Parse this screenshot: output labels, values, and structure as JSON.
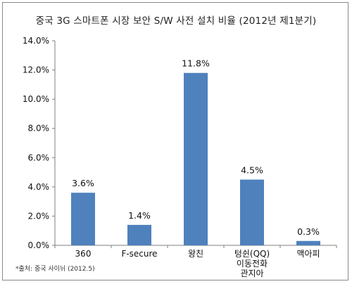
{
  "chart_data": {
    "type": "bar",
    "title": "중국 3G 스마트폰 시장 보안 S/W 사전 설치 비율 (2012년 제1분기)",
    "categories": [
      [
        "360"
      ],
      [
        "F-secure"
      ],
      [
        "왕친"
      ],
      [
        "텅쉰(QQ)",
        "이동전화",
        "관지아"
      ],
      [
        "맥아피"
      ]
    ],
    "values": [
      3.6,
      1.4,
      11.8,
      4.5,
      0.3
    ],
    "value_labels": [
      "3.6%",
      "1.4%",
      "11.8%",
      "4.5%",
      "0.3%"
    ],
    "ylim": [
      0,
      14
    ],
    "yticks": [
      "0.0%",
      "2.0%",
      "4.0%",
      "6.0%",
      "8.0%",
      "10.0%",
      "12.0%",
      "14.0%"
    ],
    "ytick_values": [
      0,
      2,
      4,
      6,
      8,
      10,
      12,
      14
    ],
    "bar_color": "#4f81bd",
    "grid": false,
    "legend": "none",
    "source": "*출처: 중국 사이뉘 (2012.5)"
  }
}
